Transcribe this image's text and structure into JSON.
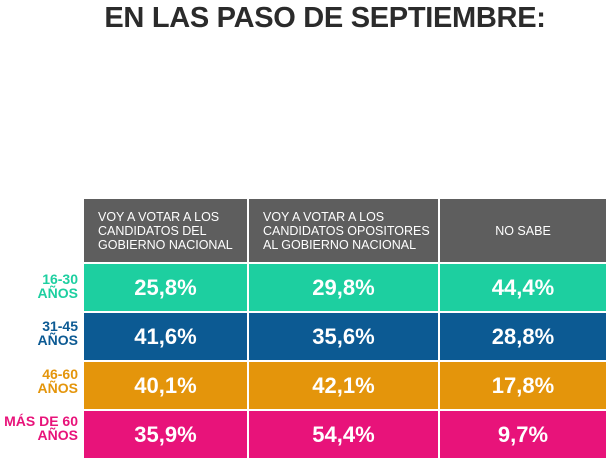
{
  "title": "EN LAS PASO DE SEPTIEMBRE:",
  "chart_data": {
    "type": "table",
    "columns": [
      "VOY A VOTAR A LOS CANDIDATOS DEL GOBIERNO NACIONAL",
      "VOY A VOTAR A LOS CANDIDATOS OPOSITORES AL GOBIERNO NACIONAL",
      "NO SABE"
    ],
    "rows": [
      {
        "label": "16-30 AÑOS",
        "color": "#1dcfa0",
        "values": [
          "25,8%",
          "29,8%",
          "44,4%"
        ]
      },
      {
        "label": "31-45 AÑOS",
        "color": "#0c5a93",
        "values": [
          "41,6%",
          "35,6%",
          "28,8%"
        ]
      },
      {
        "label": "46-60 AÑOS",
        "color": "#e4950b",
        "values": [
          "40,1%",
          "42,1%",
          "17,8%"
        ]
      },
      {
        "label": "MÁS DE 60 AÑOS",
        "color": "#e8137a",
        "values": [
          "35,9%",
          "54,4%",
          "9,7%"
        ]
      }
    ]
  }
}
